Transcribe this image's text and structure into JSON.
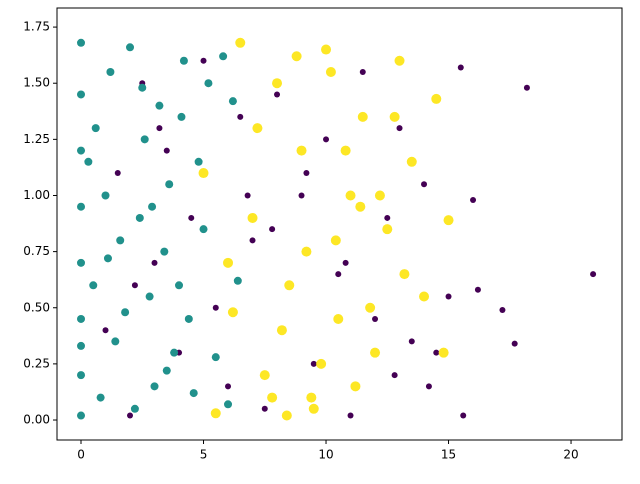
{
  "chart_data": {
    "type": "scatter",
    "xlim": [
      -0.98,
      22.08
    ],
    "ylim": [
      -0.089,
      1.835
    ],
    "xticks": [
      0,
      5,
      10,
      15,
      20
    ],
    "yticks": [
      {
        "value": 0,
        "label": "0.00"
      },
      {
        "value": 0.25,
        "label": "0.25"
      },
      {
        "value": 0.5,
        "label": "0.50"
      },
      {
        "value": 0.75,
        "label": "0.75"
      },
      {
        "value": 1,
        "label": "1.00"
      },
      {
        "value": 1.25,
        "label": "1.25"
      },
      {
        "value": 1.5,
        "label": "1.50"
      },
      {
        "value": 1.75,
        "label": "1.75"
      }
    ],
    "grid": false,
    "series": [
      {
        "color": "#440154",
        "marker_size": 3,
        "x": [
          1,
          1.5,
          2,
          2.5,
          3,
          3.5,
          4,
          4.5,
          5,
          5.5,
          6,
          6.5,
          7,
          7.5,
          8,
          8.5,
          9,
          9.5,
          10,
          10.5,
          11,
          11.5,
          12,
          12.5,
          13,
          13.5,
          14,
          14.5,
          15,
          15.5,
          16,
          16.2,
          17.2,
          17.7,
          18.2,
          20.9,
          15.6,
          14.2,
          12.8,
          10.8,
          9.2,
          7.8,
          3.2,
          2.2,
          6.8
        ],
        "values": [
          0.4,
          1.1,
          0.02,
          1.5,
          0.7,
          1.2,
          0.3,
          0.9,
          1.6,
          0.5,
          0.15,
          1.35,
          0.8,
          0.05,
          1.45,
          0.6,
          1.0,
          0.25,
          1.25,
          0.65,
          0.02,
          1.55,
          0.45,
          0.9,
          1.3,
          0.35,
          1.05,
          0.3,
          0.55,
          1.57,
          0.98,
          0.58,
          0.49,
          0.34,
          1.48,
          0.65,
          0.02,
          0.15,
          0.2,
          0.7,
          1.1,
          0.85,
          1.3,
          0.6,
          1.0
        ]
      },
      {
        "color": "#21918c",
        "marker_size": 4,
        "x": [
          0,
          0,
          0,
          0,
          0,
          0,
          0,
          0,
          0.5,
          0.6,
          0.8,
          1,
          1.2,
          1.4,
          1.6,
          2,
          2.2,
          2.4,
          2.6,
          2.8,
          3,
          3.2,
          3.4,
          3.6,
          3.8,
          4,
          4.2,
          4.4,
          4.6,
          4.8,
          5,
          5.2,
          5.5,
          5.8,
          6,
          6.2,
          6.4,
          0,
          0.3,
          1.8,
          2.9,
          3.5,
          4.1,
          1.1,
          2.5
        ],
        "values": [
          0.02,
          0.2,
          0.45,
          0.7,
          0.95,
          1.2,
          1.45,
          1.68,
          0.6,
          1.3,
          0.1,
          1.0,
          1.55,
          0.35,
          0.8,
          1.66,
          0.05,
          0.9,
          1.25,
          0.55,
          0.15,
          1.4,
          0.75,
          1.05,
          0.3,
          0.6,
          1.6,
          0.45,
          0.12,
          1.15,
          0.85,
          1.5,
          0.28,
          1.62,
          0.07,
          1.42,
          0.62,
          0.33,
          1.15,
          0.48,
          0.95,
          0.22,
          1.35,
          0.72,
          1.48
        ]
      },
      {
        "color": "#fde725",
        "marker_size": 5,
        "x": [
          5,
          5.5,
          6,
          6.5,
          7,
          7.5,
          8,
          8.5,
          9,
          9.5,
          10,
          10.5,
          11,
          11.5,
          12,
          12.5,
          13,
          13.5,
          14,
          14.5,
          15,
          7.2,
          8.2,
          9.2,
          10.2,
          11.2,
          12.2,
          13.2,
          9.8,
          10.8,
          11.8,
          8.8,
          7.8,
          6.2,
          12.8,
          14.8,
          10.4,
          11.4,
          9.4,
          8.4
        ],
        "values": [
          1.1,
          0.03,
          0.7,
          1.68,
          0.9,
          0.2,
          1.5,
          0.6,
          1.2,
          0.05,
          1.65,
          0.45,
          1.0,
          1.35,
          0.3,
          0.85,
          1.6,
          1.15,
          0.55,
          1.43,
          0.89,
          1.3,
          0.4,
          0.75,
          1.55,
          0.15,
          1.0,
          0.65,
          0.25,
          1.2,
          0.5,
          1.62,
          0.1,
          0.48,
          1.35,
          0.3,
          0.8,
          0.95,
          0.1,
          0.02
        ]
      }
    ]
  }
}
